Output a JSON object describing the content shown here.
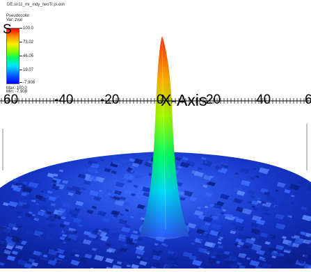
{
  "file_name": "DE.sn11_mr_indy_neoTr.pi.osh",
  "legend": {
    "title": "Pseudocolor",
    "variable": "Var: zval",
    "corner_letter": "S",
    "ticks": [
      "100.0",
      "73.02",
      "46.05",
      "19.07",
      "-7.908"
    ],
    "max_label": "Max: 100.0",
    "min_label": "Min: -7.908",
    "colors": [
      "#ff0000",
      "#ffee00",
      "#00ff6a",
      "#00e5ff",
      "#0000ff"
    ]
  },
  "axis": {
    "title": "X-Axis",
    "tick_labels": [
      "60",
      "-40",
      "-20",
      "0",
      "20",
      "40",
      "6"
    ]
  },
  "surface_colors": {
    "base": "#1a3fd6",
    "peak_top": "#ff2a00"
  }
}
